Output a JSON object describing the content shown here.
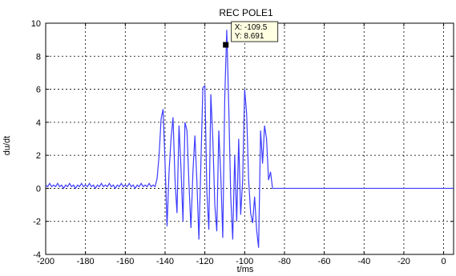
{
  "chart_data": {
    "type": "line",
    "title": "REC POLE1",
    "xlabel": "t/ms",
    "ylabel": "du/dt",
    "xlim": [
      -200,
      5
    ],
    "ylim": [
      -4,
      10
    ],
    "xticks": [
      -200,
      -180,
      -160,
      -140,
      -120,
      -100,
      -80,
      -60,
      -40,
      -20,
      0
    ],
    "yticks": [
      -4,
      -2,
      0,
      2,
      4,
      6,
      8,
      10
    ],
    "grid": true,
    "line_color": "#3c3cff",
    "series": [
      {
        "x": [
          -200,
          -199,
          -198,
          -197,
          -196,
          -195,
          -194,
          -193,
          -192,
          -191,
          -190,
          -189,
          -188,
          -187,
          -186,
          -185,
          -184,
          -183,
          -182,
          -181,
          -180,
          -179,
          -178,
          -177,
          -176,
          -175,
          -174,
          -173,
          -172,
          -171,
          -170,
          -169,
          -168,
          -167,
          -166,
          -165,
          -164,
          -163,
          -162,
          -161,
          -160,
          -159,
          -158,
          -157,
          -156,
          -155,
          -154,
          -153,
          -152,
          -151,
          -150,
          -149,
          -148,
          -147,
          -146,
          -145,
          -144,
          -143,
          -142,
          -141,
          -140,
          -139,
          -138,
          -137,
          -136,
          -135,
          -134,
          -133,
          -132,
          -131,
          -130,
          -129,
          -128,
          -127,
          -126,
          -125,
          -124,
          -123,
          -122,
          -121,
          -120,
          -119,
          -118,
          -117,
          -116,
          -115,
          -114,
          -113,
          -112,
          -111,
          -110,
          -109,
          -108,
          -107,
          -106,
          -105,
          -104,
          -103,
          -102,
          -101,
          -100,
          -99,
          -98,
          -97,
          -96,
          -95,
          -94,
          -93,
          -92,
          -91,
          -90,
          -89,
          -88,
          -87,
          -86,
          5
        ],
        "y": [
          0.2,
          0.1,
          0.3,
          0.1,
          0.2,
          0.1,
          0.3,
          0.1,
          0.2,
          0.0,
          0.2,
          0.1,
          0.3,
          0.1,
          0.2,
          0.0,
          0.2,
          0.1,
          0.3,
          0.1,
          0.2,
          0.1,
          0.3,
          0.1,
          0.2,
          0.0,
          0.2,
          0.1,
          0.3,
          0.1,
          0.2,
          0.1,
          0.3,
          0.1,
          0.2,
          0.0,
          0.2,
          0.1,
          0.3,
          0.1,
          0.2,
          0.1,
          0.3,
          0.1,
          0.2,
          0.0,
          0.2,
          0.1,
          0.3,
          0.1,
          0.2,
          0.1,
          0.3,
          0.1,
          0.2,
          0.1,
          0.6,
          2.0,
          4.2,
          4.8,
          1.5,
          -2.3,
          1.0,
          3.0,
          4.3,
          0.5,
          -1.5,
          3.8,
          1.2,
          -2.0,
          4.0,
          3.5,
          0.3,
          -2.4,
          1.0,
          3.2,
          0.4,
          -3.1,
          1.5,
          6.1,
          6.2,
          -0.2,
          -2.5,
          5.7,
          3.0,
          -1.0,
          -2.6,
          3.5,
          0.8,
          -3.0,
          5.5,
          9.6,
          5.0,
          -0.5,
          -3.1,
          2.0,
          -2.0,
          3.0,
          -1.6,
          0.5,
          6.0,
          4.5,
          0.5,
          -1.5,
          -2.1,
          -0.5,
          -2.5,
          -3.6,
          3.5,
          1.5,
          3.8,
          3.0,
          0.5,
          1.0,
          0.0,
          0.0
        ]
      }
    ],
    "datatip": {
      "x": -109.5,
      "y": 8.691,
      "x_text": "X: -109.5",
      "y_text": "Y: 8.691"
    }
  }
}
